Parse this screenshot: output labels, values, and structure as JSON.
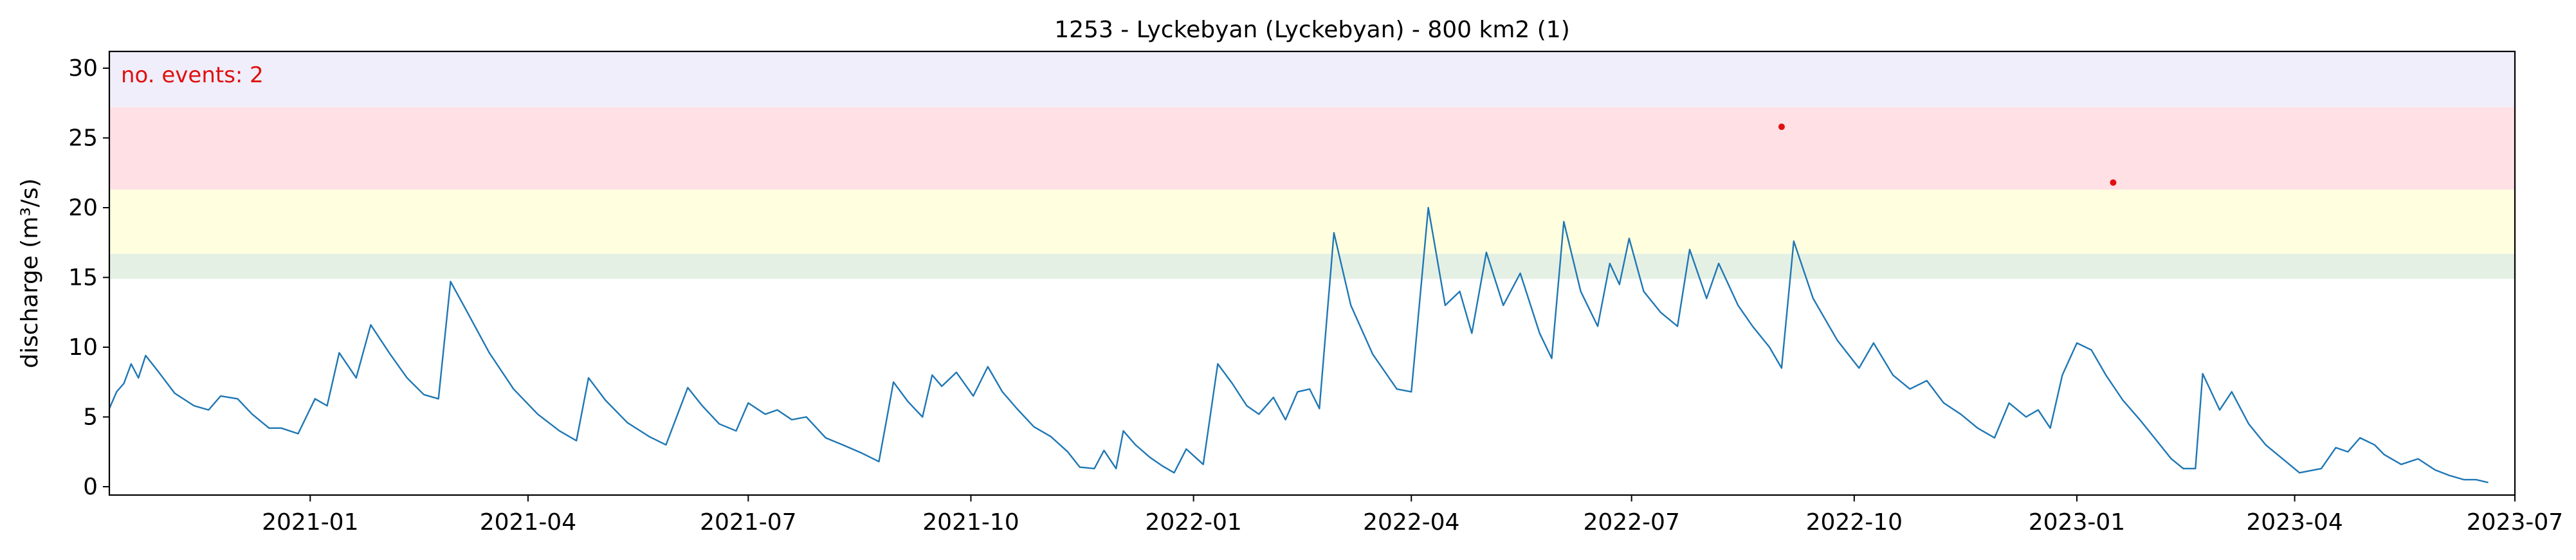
{
  "chart_data": {
    "type": "line",
    "title": "1253 - Lyckebyan (Lyckebyan) - 800 km2 (1)",
    "xlabel": "",
    "ylabel": "discharge (m³/s)",
    "annotation": "no. events: 2",
    "xlim": [
      "2020-10-10",
      "2023-07-01"
    ],
    "ylim": [
      -0.6,
      31.2
    ],
    "xticks": [
      "2021-01",
      "2021-04",
      "2021-07",
      "2021-10",
      "2022-01",
      "2022-04",
      "2022-07",
      "2022-10",
      "2023-01",
      "2023-04",
      "2023-07"
    ],
    "yticks": [
      0,
      5,
      10,
      15,
      20,
      25,
      30
    ],
    "grid": false,
    "threshold_bands": [
      {
        "from": 14.9,
        "to": 16.7,
        "color": "#e5f0e5"
      },
      {
        "from": 16.7,
        "to": 21.3,
        "color": "#ffffe0"
      },
      {
        "from": 21.3,
        "to": 27.2,
        "color": "#ffe0e5"
      },
      {
        "from": 27.2,
        "to": 31.2,
        "color": "#f0eefa"
      }
    ],
    "series": [
      {
        "color": "#1f77b4",
        "points": [
          [
            "2020-10-10",
            5.6
          ],
          [
            "2020-10-13",
            6.8
          ],
          [
            "2020-10-16",
            7.4
          ],
          [
            "2020-10-19",
            8.8
          ],
          [
            "2020-10-22",
            7.8
          ],
          [
            "2020-10-25",
            9.4
          ],
          [
            "2020-10-30",
            8.3
          ],
          [
            "2020-11-06",
            6.7
          ],
          [
            "2020-11-14",
            5.8
          ],
          [
            "2020-11-20",
            5.5
          ],
          [
            "2020-11-25",
            6.5
          ],
          [
            "2020-12-02",
            6.3
          ],
          [
            "2020-12-08",
            5.2
          ],
          [
            "2020-12-15",
            4.2
          ],
          [
            "2020-12-20",
            4.2
          ],
          [
            "2020-12-27",
            3.8
          ],
          [
            "2021-01-03",
            6.3
          ],
          [
            "2021-01-08",
            5.8
          ],
          [
            "2021-01-13",
            9.6
          ],
          [
            "2021-01-20",
            7.8
          ],
          [
            "2021-01-26",
            11.6
          ],
          [
            "2021-02-03",
            9.5
          ],
          [
            "2021-02-10",
            7.8
          ],
          [
            "2021-02-17",
            6.6
          ],
          [
            "2021-02-23",
            6.3
          ],
          [
            "2021-02-28",
            14.7
          ],
          [
            "2021-03-06",
            12.8
          ],
          [
            "2021-03-16",
            9.6
          ],
          [
            "2021-03-26",
            7.0
          ],
          [
            "2021-04-05",
            5.2
          ],
          [
            "2021-04-14",
            4.0
          ],
          [
            "2021-04-21",
            3.3
          ],
          [
            "2021-04-26",
            7.8
          ],
          [
            "2021-05-03",
            6.2
          ],
          [
            "2021-05-12",
            4.6
          ],
          [
            "2021-05-21",
            3.6
          ],
          [
            "2021-05-28",
            3.0
          ],
          [
            "2021-06-06",
            7.1
          ],
          [
            "2021-06-12",
            5.8
          ],
          [
            "2021-06-19",
            4.5
          ],
          [
            "2021-06-26",
            4.0
          ],
          [
            "2021-07-01",
            6.0
          ],
          [
            "2021-07-08",
            5.2
          ],
          [
            "2021-07-13",
            5.5
          ],
          [
            "2021-07-19",
            4.8
          ],
          [
            "2021-07-25",
            5.0
          ],
          [
            "2021-08-02",
            3.5
          ],
          [
            "2021-08-09",
            3.0
          ],
          [
            "2021-08-17",
            2.4
          ],
          [
            "2021-08-24",
            1.8
          ],
          [
            "2021-08-30",
            7.5
          ],
          [
            "2021-09-05",
            6.1
          ],
          [
            "2021-09-11",
            5.0
          ],
          [
            "2021-09-15",
            8.0
          ],
          [
            "2021-09-19",
            7.2
          ],
          [
            "2021-09-25",
            8.2
          ],
          [
            "2021-10-02",
            6.5
          ],
          [
            "2021-10-08",
            8.6
          ],
          [
            "2021-10-14",
            6.8
          ],
          [
            "2021-10-20",
            5.6
          ],
          [
            "2021-10-27",
            4.3
          ],
          [
            "2021-11-03",
            3.6
          ],
          [
            "2021-11-10",
            2.5
          ],
          [
            "2021-11-15",
            1.4
          ],
          [
            "2021-11-21",
            1.3
          ],
          [
            "2021-11-25",
            2.6
          ],
          [
            "2021-11-30",
            1.3
          ],
          [
            "2021-12-03",
            4.0
          ],
          [
            "2021-12-08",
            3.0
          ],
          [
            "2021-12-14",
            2.1
          ],
          [
            "2021-12-19",
            1.5
          ],
          [
            "2021-12-24",
            1.0
          ],
          [
            "2021-12-29",
            2.7
          ],
          [
            "2022-01-05",
            1.6
          ],
          [
            "2022-01-11",
            8.8
          ],
          [
            "2022-01-17",
            7.4
          ],
          [
            "2022-01-23",
            5.8
          ],
          [
            "2022-01-28",
            5.2
          ],
          [
            "2022-02-03",
            6.4
          ],
          [
            "2022-02-08",
            4.8
          ],
          [
            "2022-02-13",
            6.8
          ],
          [
            "2022-02-18",
            7.0
          ],
          [
            "2022-02-22",
            5.6
          ],
          [
            "2022-02-28",
            18.2
          ],
          [
            "2022-03-07",
            13.0
          ],
          [
            "2022-03-16",
            9.5
          ],
          [
            "2022-03-26",
            7.0
          ],
          [
            "2022-04-01",
            6.8
          ],
          [
            "2022-04-08",
            20.0
          ],
          [
            "2022-04-15",
            13.0
          ],
          [
            "2022-04-21",
            14.0
          ],
          [
            "2022-04-26",
            11.0
          ],
          [
            "2022-05-02",
            16.8
          ],
          [
            "2022-05-09",
            13.0
          ],
          [
            "2022-05-16",
            15.3
          ],
          [
            "2022-05-24",
            11.0
          ],
          [
            "2022-05-29",
            9.2
          ],
          [
            "2022-06-03",
            19.0
          ],
          [
            "2022-06-10",
            14.0
          ],
          [
            "2022-06-17",
            11.5
          ],
          [
            "2022-06-22",
            16.0
          ],
          [
            "2022-06-26",
            14.5
          ],
          [
            "2022-06-30",
            17.8
          ],
          [
            "2022-07-06",
            14.0
          ],
          [
            "2022-07-13",
            12.5
          ],
          [
            "2022-07-20",
            11.5
          ],
          [
            "2022-07-25",
            17.0
          ],
          [
            "2022-08-01",
            13.5
          ],
          [
            "2022-08-06",
            16.0
          ],
          [
            "2022-08-14",
            13.0
          ],
          [
            "2022-08-20",
            11.5
          ],
          [
            "2022-08-27",
            10.0
          ],
          [
            "2022-09-01",
            8.5
          ],
          [
            "2022-09-06",
            17.6
          ],
          [
            "2022-09-14",
            13.5
          ],
          [
            "2022-09-24",
            10.5
          ],
          [
            "2022-10-03",
            8.5
          ],
          [
            "2022-10-09",
            10.3
          ],
          [
            "2022-10-17",
            8.0
          ],
          [
            "2022-10-24",
            7.0
          ],
          [
            "2022-10-31",
            7.6
          ],
          [
            "2022-11-07",
            6.0
          ],
          [
            "2022-11-14",
            5.2
          ],
          [
            "2022-11-21",
            4.2
          ],
          [
            "2022-11-28",
            3.5
          ],
          [
            "2022-12-04",
            6.0
          ],
          [
            "2022-12-11",
            5.0
          ],
          [
            "2022-12-16",
            5.5
          ],
          [
            "2022-12-21",
            4.2
          ],
          [
            "2022-12-26",
            8.0
          ],
          [
            "2023-01-01",
            10.3
          ],
          [
            "2023-01-07",
            9.8
          ],
          [
            "2023-01-13",
            8.0
          ],
          [
            "2023-01-20",
            6.2
          ],
          [
            "2023-01-27",
            4.8
          ],
          [
            "2023-02-03",
            3.3
          ],
          [
            "2023-02-09",
            2.0
          ],
          [
            "2023-02-14",
            1.3
          ],
          [
            "2023-02-19",
            1.3
          ],
          [
            "2023-02-22",
            8.1
          ],
          [
            "2023-03-01",
            5.5
          ],
          [
            "2023-03-06",
            6.8
          ],
          [
            "2023-03-13",
            4.5
          ],
          [
            "2023-03-20",
            3.0
          ],
          [
            "2023-03-27",
            2.0
          ],
          [
            "2023-04-03",
            1.0
          ],
          [
            "2023-04-12",
            1.3
          ],
          [
            "2023-04-18",
            2.8
          ],
          [
            "2023-04-23",
            2.5
          ],
          [
            "2023-04-28",
            3.5
          ],
          [
            "2023-05-04",
            3.0
          ],
          [
            "2023-05-08",
            2.3
          ],
          [
            "2023-05-15",
            1.6
          ],
          [
            "2023-05-22",
            2.0
          ],
          [
            "2023-05-29",
            1.2
          ],
          [
            "2023-06-04",
            0.8
          ],
          [
            "2023-06-10",
            0.5
          ],
          [
            "2023-06-15",
            0.5
          ],
          [
            "2023-06-20",
            0.3
          ]
        ]
      }
    ],
    "events": [
      {
        "date": "2022-09-01",
        "value": 25.8,
        "color": "#e01010"
      },
      {
        "date": "2023-01-16",
        "value": 21.8,
        "color": "#e01010"
      }
    ]
  }
}
